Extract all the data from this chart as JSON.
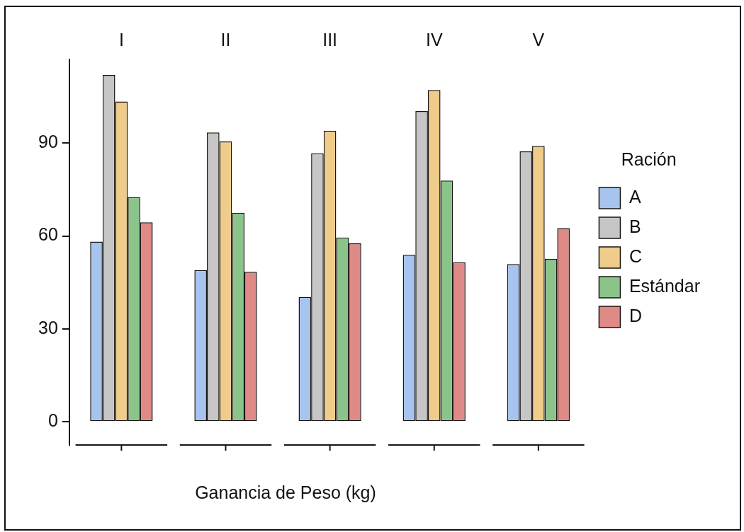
{
  "chart_data": {
    "type": "bar",
    "xlabel": "Ganancia de Peso (kg)",
    "legend_title": "Ración",
    "categories": [
      "I",
      "II",
      "III",
      "IV",
      "V"
    ],
    "series": [
      {
        "name": "A",
        "color": "#a7c4ef",
        "values": [
          58.2,
          49.0,
          40.3,
          53.9,
          50.9
        ]
      },
      {
        "name": "B",
        "color": "#c6c6c6",
        "values": [
          112.0,
          93.4,
          86.7,
          100.3,
          87.3
        ]
      },
      {
        "name": "C",
        "color": "#f0cc8a",
        "values": [
          103.4,
          90.5,
          94.0,
          107.1,
          89.1
        ]
      },
      {
        "name": "Estándar",
        "color": "#8ac48b",
        "values": [
          72.5,
          67.5,
          59.5,
          77.9,
          52.6
        ]
      },
      {
        "name": "D",
        "color": "#e08a88",
        "values": [
          64.4,
          48.4,
          57.6,
          51.5,
          62.5
        ]
      }
    ],
    "ylim": [
      -7.5,
      117
    ],
    "yticks": [
      0,
      30,
      60,
      90
    ],
    "grid": false,
    "legend": "right"
  }
}
